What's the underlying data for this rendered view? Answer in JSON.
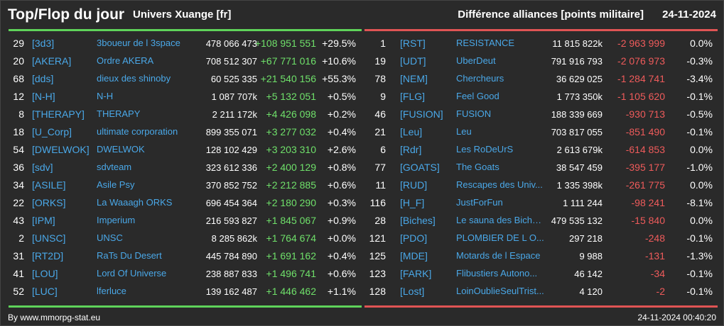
{
  "header": {
    "title": "Top/Flop du jour",
    "server": "Univers Xuange [fr]",
    "subtitle": "Différence alliances [points militaire]",
    "date": "24-11-2024"
  },
  "top": [
    {
      "rank": "29",
      "tag": "[3d3]",
      "name": "3boueur de l 3space",
      "points": "478 066 473",
      "change": "+108 951 551",
      "pct": "+29.5%"
    },
    {
      "rank": "20",
      "tag": "[AKERA]",
      "name": "Ordre AKERA",
      "points": "708 512 307",
      "change": "+67 771 016",
      "pct": "+10.6%"
    },
    {
      "rank": "68",
      "tag": "[dds]",
      "name": "dieux des shinoby",
      "points": "60 525 335",
      "change": "+21 540 156",
      "pct": "+55.3%"
    },
    {
      "rank": "12",
      "tag": "[N-H]",
      "name": "N-H",
      "points": "1 087 707k",
      "change": "+5 132 051",
      "pct": "+0.5%"
    },
    {
      "rank": "8",
      "tag": "[THERAPY]",
      "name": "THERAPY",
      "points": "2 211 172k",
      "change": "+4 426 098",
      "pct": "+0.2%"
    },
    {
      "rank": "18",
      "tag": "[U_Corp]",
      "name": "ultimate corporation",
      "points": "899 355 071",
      "change": "+3 277 032",
      "pct": "+0.4%"
    },
    {
      "rank": "54",
      "tag": "[DWELWOK]",
      "name": "DWELWOK",
      "points": "128 102 429",
      "change": "+3 203 310",
      "pct": "+2.6%"
    },
    {
      "rank": "36",
      "tag": "[sdv]",
      "name": "sdvteam",
      "points": "323 612 336",
      "change": "+2 400 129",
      "pct": "+0.8%"
    },
    {
      "rank": "34",
      "tag": "[ASILE]",
      "name": "Asile Psy",
      "points": "370 852 752",
      "change": "+2 212 885",
      "pct": "+0.6%"
    },
    {
      "rank": "22",
      "tag": "[ORKS]",
      "name": "La Waaagh ORKS",
      "points": "696 454 364",
      "change": "+2 180 290",
      "pct": "+0.3%"
    },
    {
      "rank": "43",
      "tag": "[IPM]",
      "name": "Imperium",
      "points": "216 593 827",
      "change": "+1 845 067",
      "pct": "+0.9%"
    },
    {
      "rank": "2",
      "tag": "[UNSC]",
      "name": "UNSC",
      "points": "8 285 862k",
      "change": "+1 764 674",
      "pct": "+0.0%"
    },
    {
      "rank": "31",
      "tag": "[RT2D]",
      "name": "RaTs Du Desert",
      "points": "445 784 890",
      "change": "+1 691 162",
      "pct": "+0.4%"
    },
    {
      "rank": "41",
      "tag": "[LOU]",
      "name": "Lord Of Universe",
      "points": "238 887 833",
      "change": "+1 496 741",
      "pct": "+0.6%"
    },
    {
      "rank": "52",
      "tag": "[LUC]",
      "name": "lferluce",
      "points": "139 162 487",
      "change": "+1 446 462",
      "pct": "+1.1%"
    }
  ],
  "flop": [
    {
      "rank": "1",
      "tag": "[RST]",
      "name": "RESISTANCE",
      "points": "11 815 822k",
      "change": "-2 963 999",
      "pct": "0.0%"
    },
    {
      "rank": "19",
      "tag": "[UDT]",
      "name": "UberDeut",
      "points": "791 916 793",
      "change": "-2 076 973",
      "pct": "-0.3%"
    },
    {
      "rank": "78",
      "tag": "[NEM]",
      "name": "Chercheurs",
      "points": "36 629 025",
      "change": "-1 284 741",
      "pct": "-3.4%"
    },
    {
      "rank": "9",
      "tag": "[FLG]",
      "name": "Feel Good",
      "points": "1 773 350k",
      "change": "-1 105 620",
      "pct": "-0.1%"
    },
    {
      "rank": "46",
      "tag": "[FUSION]",
      "name": "FUSION",
      "points": "188 339 669",
      "change": "-930 713",
      "pct": "-0.5%"
    },
    {
      "rank": "21",
      "tag": "[Leu]",
      "name": "Leu",
      "points": "703 817 055",
      "change": "-851 490",
      "pct": "-0.1%"
    },
    {
      "rank": "6",
      "tag": "[Rdr]",
      "name": "Les RoDeUrS",
      "points": "2 613 679k",
      "change": "-614 853",
      "pct": "0.0%"
    },
    {
      "rank": "77",
      "tag": "[GOATS]",
      "name": "The Goats",
      "points": "38 547 459",
      "change": "-395 177",
      "pct": "-1.0%"
    },
    {
      "rank": "11",
      "tag": "[RUD]",
      "name": "Rescapes des Univ...",
      "points": "1 335 398k",
      "change": "-261 775",
      "pct": "0.0%"
    },
    {
      "rank": "116",
      "tag": "[H_F]",
      "name": "JustForFun",
      "points": "1 111 244",
      "change": "-98 241",
      "pct": "-8.1%"
    },
    {
      "rank": "28",
      "tag": "[Biches]",
      "name": "Le sauna des Biche...",
      "points": "479 535 132",
      "change": "-15 840",
      "pct": "0.0%"
    },
    {
      "rank": "121",
      "tag": "[PDO]",
      "name": "PLOMBIER DE L O...",
      "points": "297 218",
      "change": "-248",
      "pct": "-0.1%"
    },
    {
      "rank": "125",
      "tag": "[MDE]",
      "name": "Motards de l Espace",
      "points": "9 988",
      "change": "-131",
      "pct": "-1.3%"
    },
    {
      "rank": "123",
      "tag": "[FARK]",
      "name": "Flibustiers Autono...",
      "points": "46 142",
      "change": "-34",
      "pct": "-0.1%"
    },
    {
      "rank": "128",
      "tag": "[Lost]",
      "name": "LoinOublieSeulTrist...",
      "points": "4 120",
      "change": "-2",
      "pct": "-0.1%"
    }
  ],
  "footer": {
    "source": "By www.mmorpg-stat.eu",
    "timestamp": "24-11-2024 00:40:20"
  },
  "colors": {
    "background": "#2a2a2a",
    "gain": "#6fe06a",
    "loss": "#ef5b5b",
    "alliance": "#4aa8e8"
  }
}
